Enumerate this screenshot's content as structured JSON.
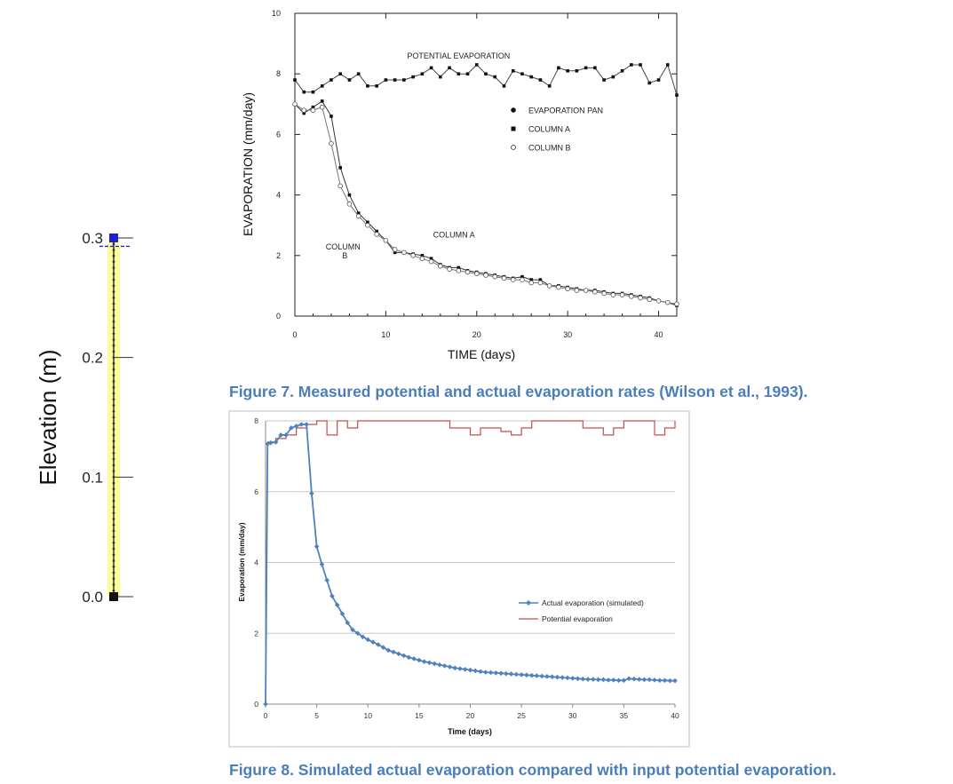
{
  "figure7_caption": "Figure 7.  Measured potential and actual evaporation rates (Wilson et al., 1993).",
  "figure8_caption": "Figure 8.  Simulated actual evaporation compared with input potential evaporation.",
  "chart_data": [
    {
      "id": "elevation-column",
      "type": "line",
      "title": "",
      "xlabel": "",
      "ylabel": "Elevation (m)",
      "ylim": [
        0.0,
        0.3
      ],
      "yticks": [
        "0.0",
        "0.1",
        "0.2",
        "0.3"
      ],
      "water_table_elevation": 0.293,
      "colors": {
        "column_fill": "#ffff99",
        "top_node": "#1f1fd6",
        "bottom_node": "#111111",
        "water_table": "#1f1fd6"
      }
    },
    {
      "id": "figure7",
      "type": "scatter",
      "title": "",
      "xlabel": "TIME  (days)",
      "ylabel": "EVAPORATION (mm/day)",
      "xlim": [
        0,
        42
      ],
      "ylim": [
        0,
        10
      ],
      "xticks": [
        0,
        10,
        20,
        30,
        40
      ],
      "yticks": [
        0,
        2,
        4,
        6,
        8,
        10
      ],
      "legend": [
        "EVAPORATION PAN",
        "COLUMN A",
        "COLUMN B"
      ],
      "legend_position": "right",
      "annotations": [
        {
          "text": "POTENTIAL EVAPORATION",
          "x": 18,
          "y": 8.5
        },
        {
          "text": "COLUMN A",
          "x": 17.5,
          "y": 2.6
        },
        {
          "text": "COLUMN",
          "x": 5.3,
          "y": 2.2
        },
        {
          "text": "B",
          "x": 5.5,
          "y": 1.9
        }
      ],
      "series": [
        {
          "name": "EVAPORATION PAN",
          "x": [
            0,
            1,
            2,
            3,
            4,
            5,
            6,
            7,
            8,
            9,
            10,
            11,
            12,
            13,
            14,
            15,
            16,
            17,
            18,
            19,
            20,
            21,
            22,
            23,
            24,
            25,
            26,
            27,
            28,
            29,
            30,
            31,
            32,
            33,
            34,
            35,
            36,
            37,
            38,
            39,
            40,
            41,
            42
          ],
          "values": [
            7.8,
            7.4,
            7.4,
            7.6,
            7.8,
            8.0,
            7.8,
            8.0,
            7.6,
            7.6,
            7.8,
            7.8,
            7.8,
            7.9,
            8.0,
            8.2,
            7.9,
            8.2,
            8.0,
            8.0,
            8.3,
            8.0,
            7.9,
            7.6,
            8.1,
            8.0,
            7.9,
            7.8,
            7.6,
            8.2,
            8.1,
            8.1,
            8.2,
            8.2,
            7.8,
            7.9,
            8.1,
            8.3,
            8.3,
            7.7,
            7.8,
            8.3,
            7.3
          ]
        },
        {
          "name": "COLUMN A",
          "x": [
            0,
            1,
            2,
            3,
            4,
            5,
            6,
            7,
            8,
            9,
            10,
            11,
            12,
            13,
            14,
            15,
            16,
            17,
            18,
            19,
            20,
            21,
            22,
            23,
            24,
            25,
            26,
            27,
            28,
            29,
            30,
            31,
            32,
            33,
            34,
            35,
            36,
            37,
            38,
            39,
            40,
            41,
            42
          ],
          "values": [
            7.0,
            6.7,
            6.9,
            7.1,
            6.6,
            4.9,
            4.0,
            3.4,
            3.1,
            2.8,
            2.5,
            2.1,
            2.1,
            2.05,
            2.0,
            1.9,
            1.7,
            1.6,
            1.6,
            1.5,
            1.45,
            1.4,
            1.35,
            1.3,
            1.25,
            1.3,
            1.2,
            1.2,
            1.0,
            1.0,
            0.95,
            0.9,
            0.85,
            0.85,
            0.8,
            0.75,
            0.75,
            0.7,
            0.65,
            0.6,
            0.5,
            0.45,
            0.35
          ]
        },
        {
          "name": "COLUMN B",
          "x": [
            0,
            1,
            2,
            3,
            4,
            5,
            6,
            7,
            8,
            9,
            10,
            11,
            12,
            13,
            14,
            15,
            16,
            17,
            18,
            19,
            20,
            21,
            22,
            23,
            24,
            25,
            26,
            27,
            28,
            29,
            30,
            31,
            32,
            33,
            34,
            35,
            36,
            37,
            38,
            39,
            40,
            41,
            42
          ],
          "values": [
            7.0,
            6.8,
            6.8,
            6.9,
            5.7,
            4.3,
            3.7,
            3.3,
            3.0,
            2.7,
            2.5,
            2.2,
            2.1,
            2.0,
            1.9,
            1.8,
            1.65,
            1.55,
            1.5,
            1.45,
            1.4,
            1.35,
            1.3,
            1.25,
            1.2,
            1.2,
            1.1,
            1.1,
            1.0,
            0.95,
            0.9,
            0.85,
            0.85,
            0.8,
            0.75,
            0.7,
            0.7,
            0.65,
            0.6,
            0.55,
            0.5,
            0.45,
            0.4
          ]
        }
      ]
    },
    {
      "id": "figure8",
      "type": "line",
      "title": "",
      "xlabel": "Time (days)",
      "ylabel": "Evaporation (mm/day)",
      "xlim": [
        0,
        40
      ],
      "ylim": [
        0,
        8
      ],
      "xticks": [
        0,
        5,
        10,
        15,
        20,
        25,
        30,
        35,
        40
      ],
      "yticks": [
        0,
        2,
        4,
        6,
        8
      ],
      "grid": true,
      "legend_position": "right",
      "series": [
        {
          "name": "Actual evaporation (simulated)",
          "color": "#4f81bd",
          "marker": "diamond",
          "x": [
            0,
            0.2,
            0.5,
            1,
            1.5,
            2,
            2.5,
            3,
            3.5,
            4,
            4.5,
            5,
            5.5,
            6,
            6.5,
            7,
            7.5,
            8,
            8.5,
            9,
            9.5,
            10,
            10.5,
            11,
            11.5,
            12,
            12.5,
            13,
            13.5,
            14,
            14.5,
            15,
            15.5,
            16,
            16.5,
            17,
            17.5,
            18,
            18.5,
            19,
            19.5,
            20,
            20.5,
            21,
            21.5,
            22,
            22.5,
            23,
            23.5,
            24,
            24.5,
            25,
            25.5,
            26,
            26.5,
            27,
            27.5,
            28,
            28.5,
            29,
            29.5,
            30,
            30.5,
            31,
            31.5,
            32,
            32.5,
            33,
            33.5,
            34,
            34.5,
            35,
            35.5,
            36,
            36.5,
            37,
            37.5,
            38,
            38.5,
            39,
            39.5,
            40
          ],
          "values": [
            0,
            7.35,
            7.38,
            7.4,
            7.6,
            7.6,
            7.8,
            7.85,
            7.9,
            7.9,
            5.95,
            4.45,
            3.95,
            3.5,
            3.05,
            2.8,
            2.55,
            2.3,
            2.1,
            2.0,
            1.9,
            1.82,
            1.75,
            1.68,
            1.6,
            1.52,
            1.47,
            1.42,
            1.37,
            1.32,
            1.28,
            1.24,
            1.2,
            1.17,
            1.14,
            1.11,
            1.08,
            1.05,
            1.02,
            1.0,
            0.98,
            0.96,
            0.94,
            0.92,
            0.9,
            0.89,
            0.88,
            0.87,
            0.86,
            0.85,
            0.84,
            0.83,
            0.82,
            0.81,
            0.8,
            0.79,
            0.78,
            0.77,
            0.76,
            0.75,
            0.74,
            0.73,
            0.72,
            0.71,
            0.7,
            0.7,
            0.69,
            0.69,
            0.68,
            0.68,
            0.67,
            0.67,
            0.72,
            0.71,
            0.7,
            0.69,
            0.69,
            0.68,
            0.67,
            0.67,
            0.66,
            0.66
          ]
        },
        {
          "name": "Potential evaporation",
          "color": "#c0504d",
          "step": true,
          "x": [
            0.2,
            1,
            2,
            3,
            4,
            5,
            6,
            7,
            8,
            9,
            10,
            11,
            12,
            13,
            14,
            15,
            16,
            17,
            18,
            19,
            20,
            21,
            22,
            23,
            24,
            25,
            26,
            27,
            28,
            29,
            30,
            31,
            32,
            33,
            34,
            35,
            36,
            37,
            38,
            39,
            40
          ],
          "values": [
            7.4,
            7.5,
            7.6,
            7.8,
            7.9,
            8.0,
            7.6,
            8.0,
            7.8,
            8.0,
            8.0,
            8.0,
            8.0,
            8.0,
            8.0,
            8.0,
            8.0,
            8.0,
            7.8,
            7.8,
            7.6,
            7.8,
            7.8,
            7.7,
            7.6,
            7.8,
            8.0,
            8.0,
            8.0,
            8.0,
            8.0,
            7.8,
            7.8,
            7.6,
            7.8,
            8.0,
            8.0,
            8.0,
            7.6,
            7.8,
            8.0
          ]
        }
      ]
    }
  ]
}
